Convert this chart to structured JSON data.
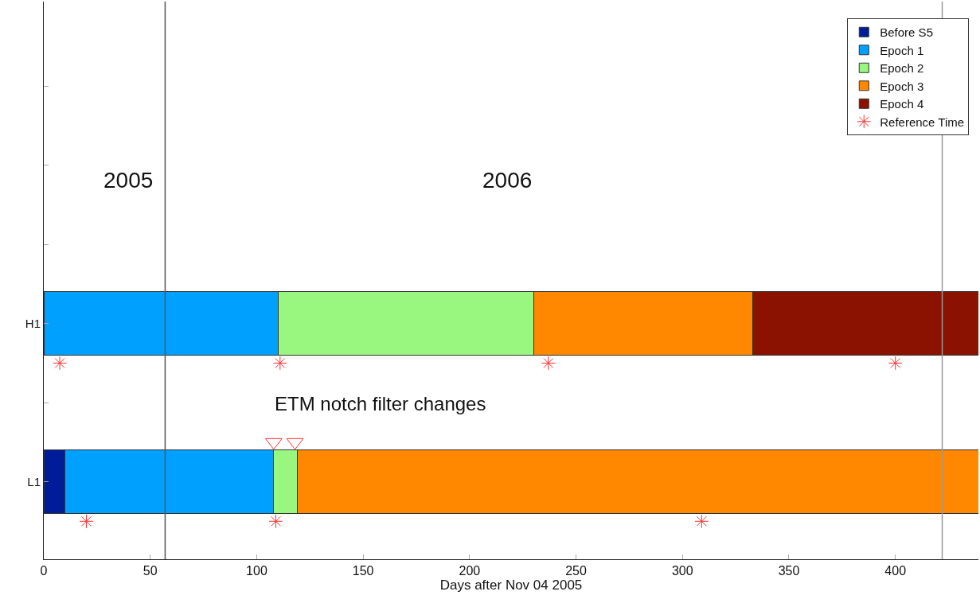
{
  "chart_data": {
    "type": "bar",
    "orientation": "horizontal",
    "stacked": true,
    "xlabel": "Days after Nov 04 2005",
    "categories": [
      null,
      null,
      null,
      "H1",
      null,
      "L1"
    ],
    "series": [
      {
        "name": "Before S5",
        "color": "#001c99",
        "values": [
          null,
          null,
          null,
          0,
          null,
          10
        ]
      },
      {
        "name": "Epoch 1",
        "color": "#00a0ff",
        "values": [
          null,
          null,
          null,
          110,
          null,
          98
        ]
      },
      {
        "name": "Epoch 2",
        "color": "#99f77f",
        "values": [
          null,
          null,
          null,
          120,
          null,
          11
        ]
      },
      {
        "name": "Epoch 3",
        "color": "#ff8800",
        "values": [
          null,
          null,
          null,
          103,
          null,
          320
        ]
      },
      {
        "name": "Epoch 4",
        "color": "#8c1200",
        "values": [
          null,
          null,
          null,
          106,
          null,
          null
        ]
      },
      {
        "name": "Reference Time",
        "type": "scatter",
        "marker": "cross",
        "color": "#ff3030",
        "values": [
          null,
          null,
          null,
          7.5,
          null,
          20
        ]
      },
      {
        "type": "scatter",
        "marker": "cross",
        "color": "#ff3030",
        "values": [
          null,
          null,
          null,
          111,
          null,
          109
        ]
      },
      {
        "type": "scatter",
        "marker": "cross",
        "color": "#ff3030",
        "values": [
          null,
          null,
          null,
          237,
          null,
          309
        ]
      },
      {
        "type": "scatter",
        "marker": "cross",
        "color": "#ff3030",
        "values": [
          null,
          null,
          null,
          400,
          null,
          null
        ]
      },
      {
        "type": "scatter",
        "marker": "triangle",
        "color": "#ff3030",
        "values": [
          null,
          null,
          null,
          null,
          108,
          null
        ]
      },
      {
        "type": "scatter",
        "marker": "triangle",
        "color": "#ff3030",
        "values": [
          null,
          null,
          null,
          null,
          118,
          null
        ]
      }
    ],
    "xlim": [
      0,
      439
    ],
    "xticks": [
      0,
      50,
      100,
      150,
      200,
      250,
      300,
      350,
      400
    ],
    "ref_lines": [
      {
        "axis": "x",
        "value": 57,
        "color": "#555555"
      },
      {
        "axis": "x",
        "value": 422,
        "color": "#999999"
      }
    ],
    "annotations": [
      "2005",
      "2006",
      "ETM notch filter changes"
    ],
    "legend": "top right"
  }
}
